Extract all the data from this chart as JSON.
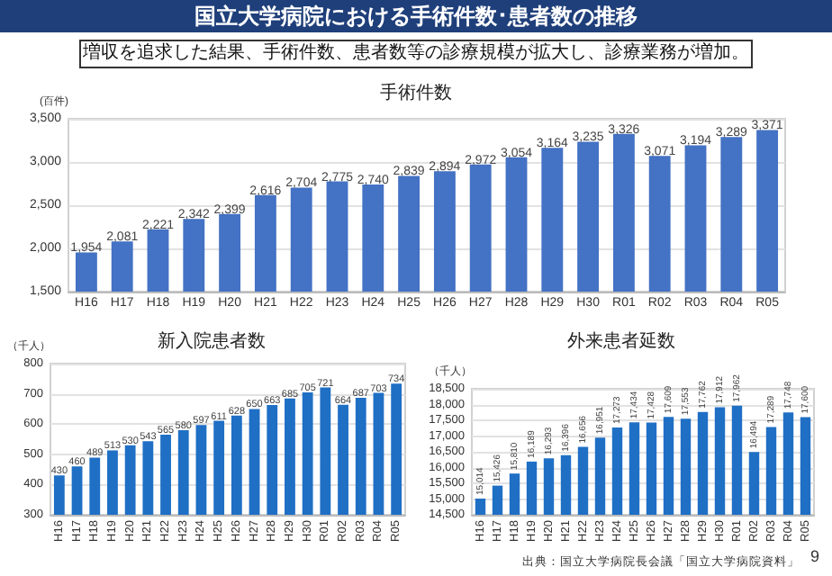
{
  "chart_data": [
    {
      "type": "bar",
      "title": "手術件数",
      "ylabel": "(百件)",
      "annotations": [
        "国立大学病院における手術件数･患者数の推移",
        "増収を追求した結果、手術件数、患者数等の診療規模が拡大し、診療業務が増加。"
      ],
      "categories": [
        "H16",
        "H17",
        "H18",
        "H19",
        "H20",
        "H21",
        "H22",
        "H23",
        "H24",
        "H25",
        "H26",
        "H27",
        "H28",
        "H29",
        "H30",
        "R01",
        "R02",
        "R03",
        "R04",
        "R05"
      ],
      "values": [
        1954,
        2081,
        2221,
        2342,
        2399,
        2616,
        2704,
        2775,
        2740,
        2839,
        2894,
        2972,
        3054,
        3164,
        3235,
        3326,
        3071,
        3194,
        3289,
        3371
      ],
      "value_labels": [
        "1,954",
        "2,081",
        "2,221",
        "2,342",
        "2,399",
        "2,616",
        "2,704",
        "2,775",
        "2,740",
        "2,839",
        "2,894",
        "2,972",
        "3,054",
        "3,164",
        "3,235",
        "3,326",
        "3,071",
        "3,194",
        "3,289",
        "3,371"
      ],
      "color": "#4472c4",
      "ylim": [
        1500,
        3500
      ],
      "yticks": [
        {
          "value": 1500,
          "label": "1,500"
        },
        {
          "value": 2000,
          "label": "2,000"
        },
        {
          "value": 2500,
          "label": "2,500"
        },
        {
          "value": 3000,
          "label": "3,000"
        },
        {
          "value": 3500,
          "label": "3,500"
        }
      ],
      "grid": "y"
    },
    {
      "type": "bar",
      "title": "新入院患者数",
      "ylabel": "（千人）",
      "categories": [
        "H16",
        "H17",
        "H18",
        "H19",
        "H20",
        "H21",
        "H22",
        "H23",
        "H24",
        "H25",
        "H26",
        "H27",
        "H28",
        "H29",
        "H30",
        "R01",
        "R02",
        "R03",
        "R04",
        "R05"
      ],
      "values": [
        430,
        460,
        489,
        513,
        530,
        543,
        565,
        580,
        597,
        611,
        628,
        650,
        663,
        685,
        705,
        721,
        664,
        687,
        703,
        734
      ],
      "color": "#1f6fc5",
      "ylim": [
        300,
        800
      ],
      "yticks": [
        300,
        400,
        500,
        600,
        700,
        800
      ],
      "grid": "y",
      "data_labels": true
    },
    {
      "type": "bar",
      "title": "外来患者延数",
      "ylabel": "（千人）",
      "annotations": [
        "出典：国立大学病院長会議「国立大学病院資料」",
        "9"
      ],
      "categories": [
        "H16",
        "H17",
        "H18",
        "H19",
        "H20",
        "H21",
        "H22",
        "H23",
        "H24",
        "H25",
        "H26",
        "H27",
        "H28",
        "H29",
        "H30",
        "R01",
        "R02",
        "R03",
        "R04",
        "R05"
      ],
      "values": [
        15014,
        15426,
        15810,
        16189,
        16293,
        16396,
        16656,
        16951,
        17273,
        17434,
        17428,
        17609,
        17553,
        17762,
        17912,
        17962,
        16494,
        17289,
        17748,
        17600
      ],
      "value_labels": [
        "15,014",
        "15,426",
        "15,810",
        "16,189",
        "16,293",
        "16,396",
        "16,656",
        "16,951",
        "17,273",
        "17,434",
        "17,428",
        "17,609",
        "17,553",
        "17,762",
        "17,912",
        "17,962",
        "16,494",
        "17,289",
        "17,748",
        "17,600"
      ],
      "color": "#1f6fc5",
      "ylim": [
        14500,
        18500
      ],
      "yticks": [
        {
          "value": 14500,
          "label": "14,500"
        },
        {
          "value": 15000,
          "label": "15,000"
        },
        {
          "value": 15500,
          "label": "15,500"
        },
        {
          "value": 16000,
          "label": "16,000"
        },
        {
          "value": 16500,
          "label": "16,500"
        },
        {
          "value": 17000,
          "label": "17,000"
        },
        {
          "value": 17500,
          "label": "17,500"
        },
        {
          "value": 18000,
          "label": "18,000"
        },
        {
          "value": 18500,
          "label": "18,500"
        }
      ],
      "grid": "y"
    }
  ]
}
